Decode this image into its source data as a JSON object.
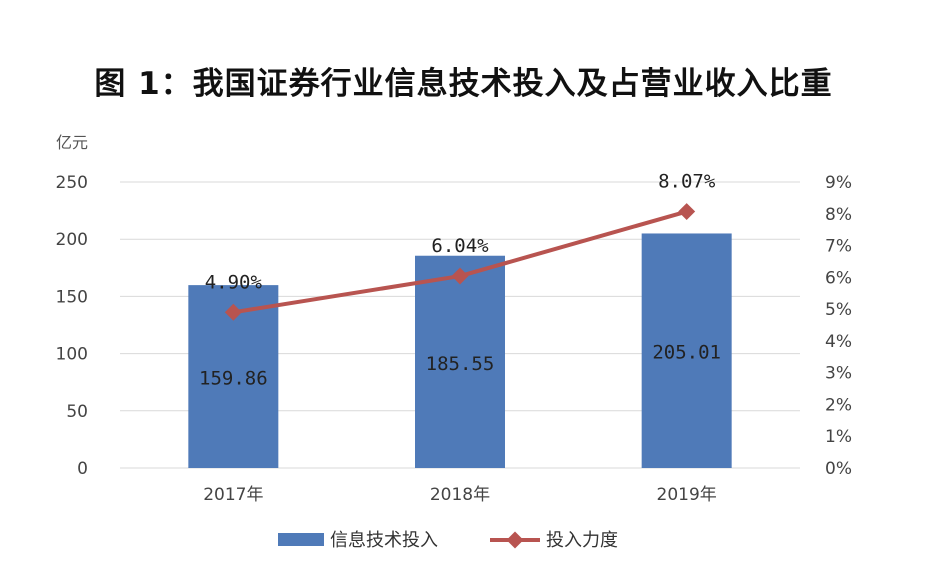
{
  "title": "图 1：我国证券行业信息技术投入及占营业收入比重",
  "chart_data": {
    "type": "bar+line",
    "categories": [
      "2017年",
      "2018年",
      "2019年"
    ],
    "y_left": {
      "unit": "亿元",
      "ylim": [
        0,
        250
      ],
      "ticks": [
        "0",
        "50",
        "100",
        "150",
        "200",
        "250"
      ]
    },
    "y_right": {
      "ylim": [
        0,
        9
      ],
      "ticks": [
        "0%",
        "1%",
        "2%",
        "3%",
        "4%",
        "5%",
        "6%",
        "7%",
        "8%",
        "9%"
      ]
    },
    "series": [
      {
        "name": "信息技术投入",
        "kind": "bar",
        "axis": "left",
        "color": "#4f7ab8",
        "values": [
          159.86,
          185.55,
          205.01
        ],
        "labels": [
          "159.86",
          "185.55",
          "205.01"
        ]
      },
      {
        "name": "投入力度",
        "kind": "line",
        "axis": "right",
        "color": "#b85450",
        "values": [
          4.9,
          6.04,
          8.07
        ],
        "labels": [
          "4.90%",
          "6.04%",
          "8.07%"
        ]
      }
    ],
    "grid": true,
    "legend": "bottom-center"
  }
}
